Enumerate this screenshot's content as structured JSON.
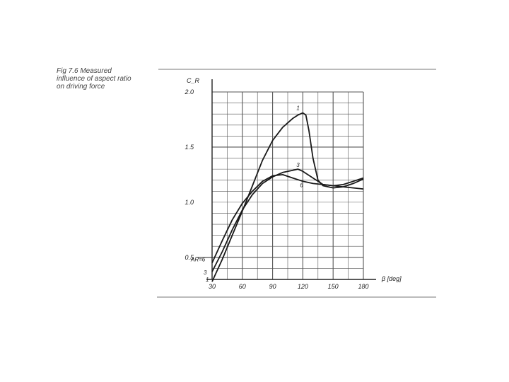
{
  "caption": {
    "line1": "Fig 7.6 Measured",
    "line2": "influence of aspect ratio",
    "line3": "on driving force"
  },
  "chart_data": {
    "type": "line",
    "title": "Fig 7.6 Measured influence of aspect ratio on driving force",
    "ylabel": "C_R",
    "xlabel": "β [deg]",
    "xlim": [
      30,
      180
    ],
    "ylim": [
      0.3,
      2.0
    ],
    "x_ticks": [
      "30",
      "60",
      "90",
      "120",
      "150",
      "180"
    ],
    "y_ticks": [
      "0.5",
      "1.0",
      "1.5",
      "2.0"
    ],
    "grid": true,
    "series": [
      {
        "name": "1",
        "x": [
          30,
          40,
          50,
          60,
          70,
          80,
          90,
          100,
          110,
          115,
          120,
          123,
          126,
          130,
          135,
          140,
          150,
          160,
          170,
          180
        ],
        "y": [
          0.28,
          0.48,
          0.7,
          0.92,
          1.15,
          1.38,
          1.56,
          1.68,
          1.76,
          1.79,
          1.81,
          1.79,
          1.65,
          1.4,
          1.2,
          1.15,
          1.13,
          1.14,
          1.17,
          1.21
        ]
      },
      {
        "name": "3",
        "x": [
          30,
          40,
          50,
          60,
          70,
          80,
          90,
          100,
          110,
          115,
          120,
          130,
          140,
          150,
          160,
          170,
          180
        ],
        "y": [
          0.37,
          0.55,
          0.75,
          0.93,
          1.07,
          1.17,
          1.23,
          1.27,
          1.29,
          1.3,
          1.28,
          1.22,
          1.16,
          1.15,
          1.16,
          1.19,
          1.22
        ]
      },
      {
        "name": "6",
        "label": "AR=6",
        "x": [
          30,
          40,
          50,
          60,
          70,
          80,
          90,
          100,
          110,
          120,
          130,
          140,
          150,
          160,
          170,
          180
        ],
        "y": [
          0.45,
          0.65,
          0.84,
          0.99,
          1.1,
          1.19,
          1.24,
          1.25,
          1.22,
          1.19,
          1.17,
          1.16,
          1.15,
          1.14,
          1.13,
          1.12
        ]
      }
    ]
  }
}
